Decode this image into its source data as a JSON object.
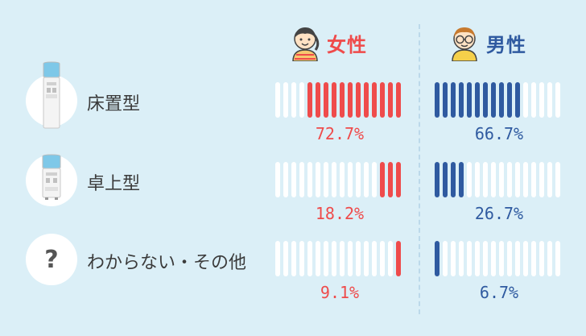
{
  "legend": {
    "female_label": "女性",
    "male_label": "男性"
  },
  "colors": {
    "background": "#dbeff7",
    "female": "#ef4b4b",
    "male": "#2f5aa0",
    "bar_empty": "#ffffff"
  },
  "rows": [
    {
      "label": "床置型",
      "icon": "floor-water-server-icon"
    },
    {
      "label": "卓上型",
      "icon": "tabletop-water-server-icon"
    },
    {
      "label": "わからない・その他",
      "icon": "question-mark-icon",
      "symbol": "?"
    }
  ],
  "chart_data": {
    "type": "bar",
    "categories": [
      "床置型",
      "卓上型",
      "わからない・その他"
    ],
    "segments_per_bar": 16,
    "series": [
      {
        "name": "女性",
        "values": [
          72.7,
          18.2,
          9.1
        ],
        "labels": [
          "72.7%",
          "18.2%",
          "9.1%"
        ]
      },
      {
        "name": "男性",
        "values": [
          66.7,
          26.7,
          6.7
        ],
        "labels": [
          "66.7%",
          "26.7%",
          "6.7%"
        ]
      }
    ],
    "ylim": [
      0,
      100
    ]
  }
}
